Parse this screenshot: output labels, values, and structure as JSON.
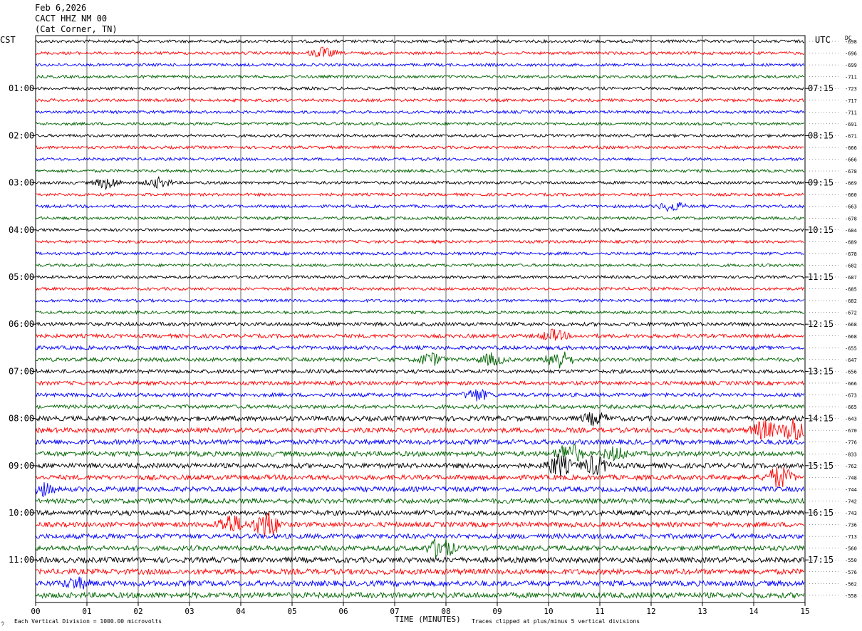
{
  "header": {
    "date": "Feb 6,2026",
    "station": "CACT HHZ NM 00",
    "location": "(Cat Corner, TN)"
  },
  "left_axis_label": "CST",
  "right_axis_label": "UTC",
  "dc_label": "DC",
  "footer": {
    "scale_note": "Each Vertical Division = 1000.00 microvolts",
    "xlabel": "TIME (MINUTES)",
    "clip_note": "Traces clipped at plus/minus 5 vertical divisions"
  },
  "chart_data": {
    "type": "line",
    "title": "CACT HHZ NM 00 (Cat Corner, TN) Feb 6,2026",
    "xlabel": "TIME (MINUTES)",
    "xlim": [
      0,
      15
    ],
    "x_ticks": [
      "00",
      "01",
      "02",
      "03",
      "04",
      "05",
      "06",
      "07",
      "08",
      "09",
      "10",
      "11",
      "12",
      "13",
      "14",
      "15"
    ],
    "trace_colors": [
      "#000000",
      "#ff0000",
      "#0000ff",
      "#006400"
    ],
    "trace_count": 48,
    "trace_minutes": 15,
    "cst_hour_labels": [
      "01:00",
      "02:00",
      "03:00",
      "04:00",
      "05:00",
      "06:00",
      "07:00",
      "08:00",
      "09:00",
      "10:00",
      "11:00"
    ],
    "utc_hour_labels": [
      "07:15",
      "08:15",
      "09:15",
      "10:15",
      "11:15",
      "12:15",
      "13:15",
      "14:15",
      "15:15",
      "16:15",
      "17:15"
    ],
    "hour_label_trace_index": [
      4,
      8,
      12,
      16,
      20,
      24,
      28,
      32,
      36,
      40,
      44
    ],
    "dc_offsets": [
      -698,
      -696,
      -699,
      -711,
      -723,
      -717,
      -711,
      -691,
      -671,
      -666,
      -666,
      -678,
      -669,
      -660,
      -663,
      -678,
      -684,
      -689,
      -678,
      -682,
      -687,
      -685,
      -682,
      -672,
      -668,
      -668,
      -655,
      -647,
      -656,
      -666,
      -673,
      -665,
      -643,
      -670,
      -776,
      -833,
      -762,
      -748,
      -744,
      -742,
      -743,
      -736,
      -713,
      -560,
      -550,
      -576,
      -562,
      -558
    ],
    "events": [
      {
        "trace": 1,
        "minute": 5.6,
        "amplitude": 1.6
      },
      {
        "trace": 12,
        "minute": 1.4,
        "amplitude": 1.8
      },
      {
        "trace": 12,
        "minute": 2.4,
        "amplitude": 1.5
      },
      {
        "trace": 14,
        "minute": 12.4,
        "amplitude": 1.5
      },
      {
        "trace": 27,
        "minute": 7.7,
        "amplitude": 2.0
      },
      {
        "trace": 27,
        "minute": 8.9,
        "amplitude": 1.8
      },
      {
        "trace": 27,
        "minute": 10.2,
        "amplitude": 3.0
      },
      {
        "trace": 25,
        "minute": 10.1,
        "amplitude": 1.8
      },
      {
        "trace": 30,
        "minute": 8.6,
        "amplitude": 1.8
      },
      {
        "trace": 32,
        "minute": 10.9,
        "amplitude": 1.8
      },
      {
        "trace": 33,
        "minute": 14.2,
        "amplitude": 3.0
      },
      {
        "trace": 33,
        "minute": 14.8,
        "amplitude": 4.0
      },
      {
        "trace": 35,
        "minute": 10.4,
        "amplitude": 3.5
      },
      {
        "trace": 35,
        "minute": 11.3,
        "amplitude": 2.0
      },
      {
        "trace": 36,
        "minute": 10.2,
        "amplitude": 3.5
      },
      {
        "trace": 36,
        "minute": 10.9,
        "amplitude": 3.0
      },
      {
        "trace": 37,
        "minute": 14.5,
        "amplitude": 3.5
      },
      {
        "trace": 38,
        "minute": 0.1,
        "amplitude": 2.0
      },
      {
        "trace": 41,
        "minute": 3.8,
        "amplitude": 3.0
      },
      {
        "trace": 41,
        "minute": 4.5,
        "amplitude": 4.5
      },
      {
        "trace": 43,
        "minute": 7.9,
        "amplitude": 3.5
      },
      {
        "trace": 46,
        "minute": 0.8,
        "amplitude": 1.6
      }
    ]
  }
}
